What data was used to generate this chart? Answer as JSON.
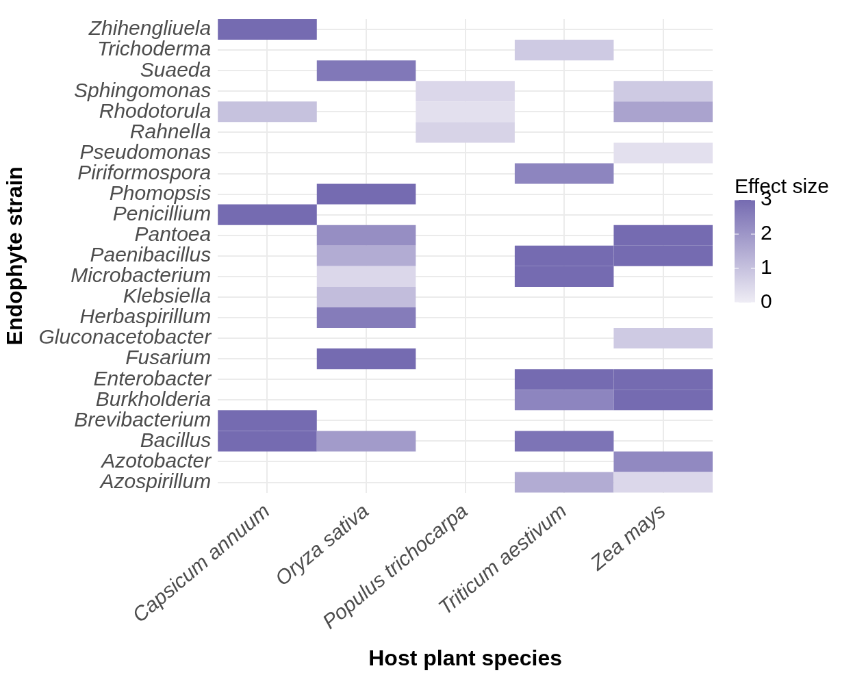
{
  "chart_data": {
    "type": "heatmap",
    "xlabel": "Host plant species",
    "ylabel": "Endophyte strain",
    "clabel": "Effect size",
    "clim": [
      0,
      3
    ],
    "cticks": [
      0,
      1,
      2,
      3
    ],
    "grid": true,
    "categories": [
      "Capsicum annuum",
      "Oryza sativa",
      "Populus trichocarpa",
      "Triticum aestivum",
      "Zea mays"
    ],
    "y_categories": [
      "Zhihengliuela",
      "Trichoderma",
      "Suaeda",
      "Sphingomonas",
      "Rhodotorula",
      "Rahnella",
      "Pseudomonas",
      "Piriformospora",
      "Phomopsis",
      "Penicillium",
      "Pantoea",
      "Paenibacillus",
      "Microbacterium",
      "Klebsiella",
      "Herbaspirillum",
      "Gluconacetobacter",
      "Fusarium",
      "Enterobacter",
      "Burkholderia",
      "Brevibacterium",
      "Bacillus",
      "Azotobacter",
      "Azospirillum"
    ],
    "cells": [
      [
        3,
        null,
        null,
        null,
        null
      ],
      [
        null,
        null,
        null,
        0.8,
        null
      ],
      [
        null,
        2.7,
        null,
        null,
        null
      ],
      [
        null,
        null,
        0.5,
        null,
        0.8
      ],
      [
        1.0,
        null,
        0.3,
        null,
        1.7
      ],
      [
        null,
        null,
        0.6,
        null,
        null
      ],
      [
        null,
        null,
        null,
        null,
        0.3
      ],
      [
        null,
        null,
        null,
        2.4,
        null
      ],
      [
        null,
        3,
        null,
        null,
        null
      ],
      [
        3,
        null,
        null,
        null,
        null
      ],
      [
        null,
        2.2,
        null,
        null,
        3
      ],
      [
        null,
        1.5,
        null,
        3,
        3
      ],
      [
        null,
        0.5,
        null,
        3,
        null
      ],
      [
        null,
        1.1,
        null,
        null,
        null
      ],
      [
        null,
        2.6,
        null,
        null,
        null
      ],
      [
        null,
        null,
        null,
        null,
        0.8
      ],
      [
        null,
        3,
        null,
        null,
        null
      ],
      [
        null,
        null,
        null,
        3,
        3
      ],
      [
        null,
        null,
        null,
        2.4,
        3
      ],
      [
        3,
        null,
        null,
        null,
        null
      ],
      [
        3,
        1.9,
        null,
        2.8,
        null
      ],
      [
        null,
        null,
        null,
        null,
        2.3
      ],
      [
        null,
        null,
        null,
        1.5,
        0.5
      ]
    ]
  }
}
